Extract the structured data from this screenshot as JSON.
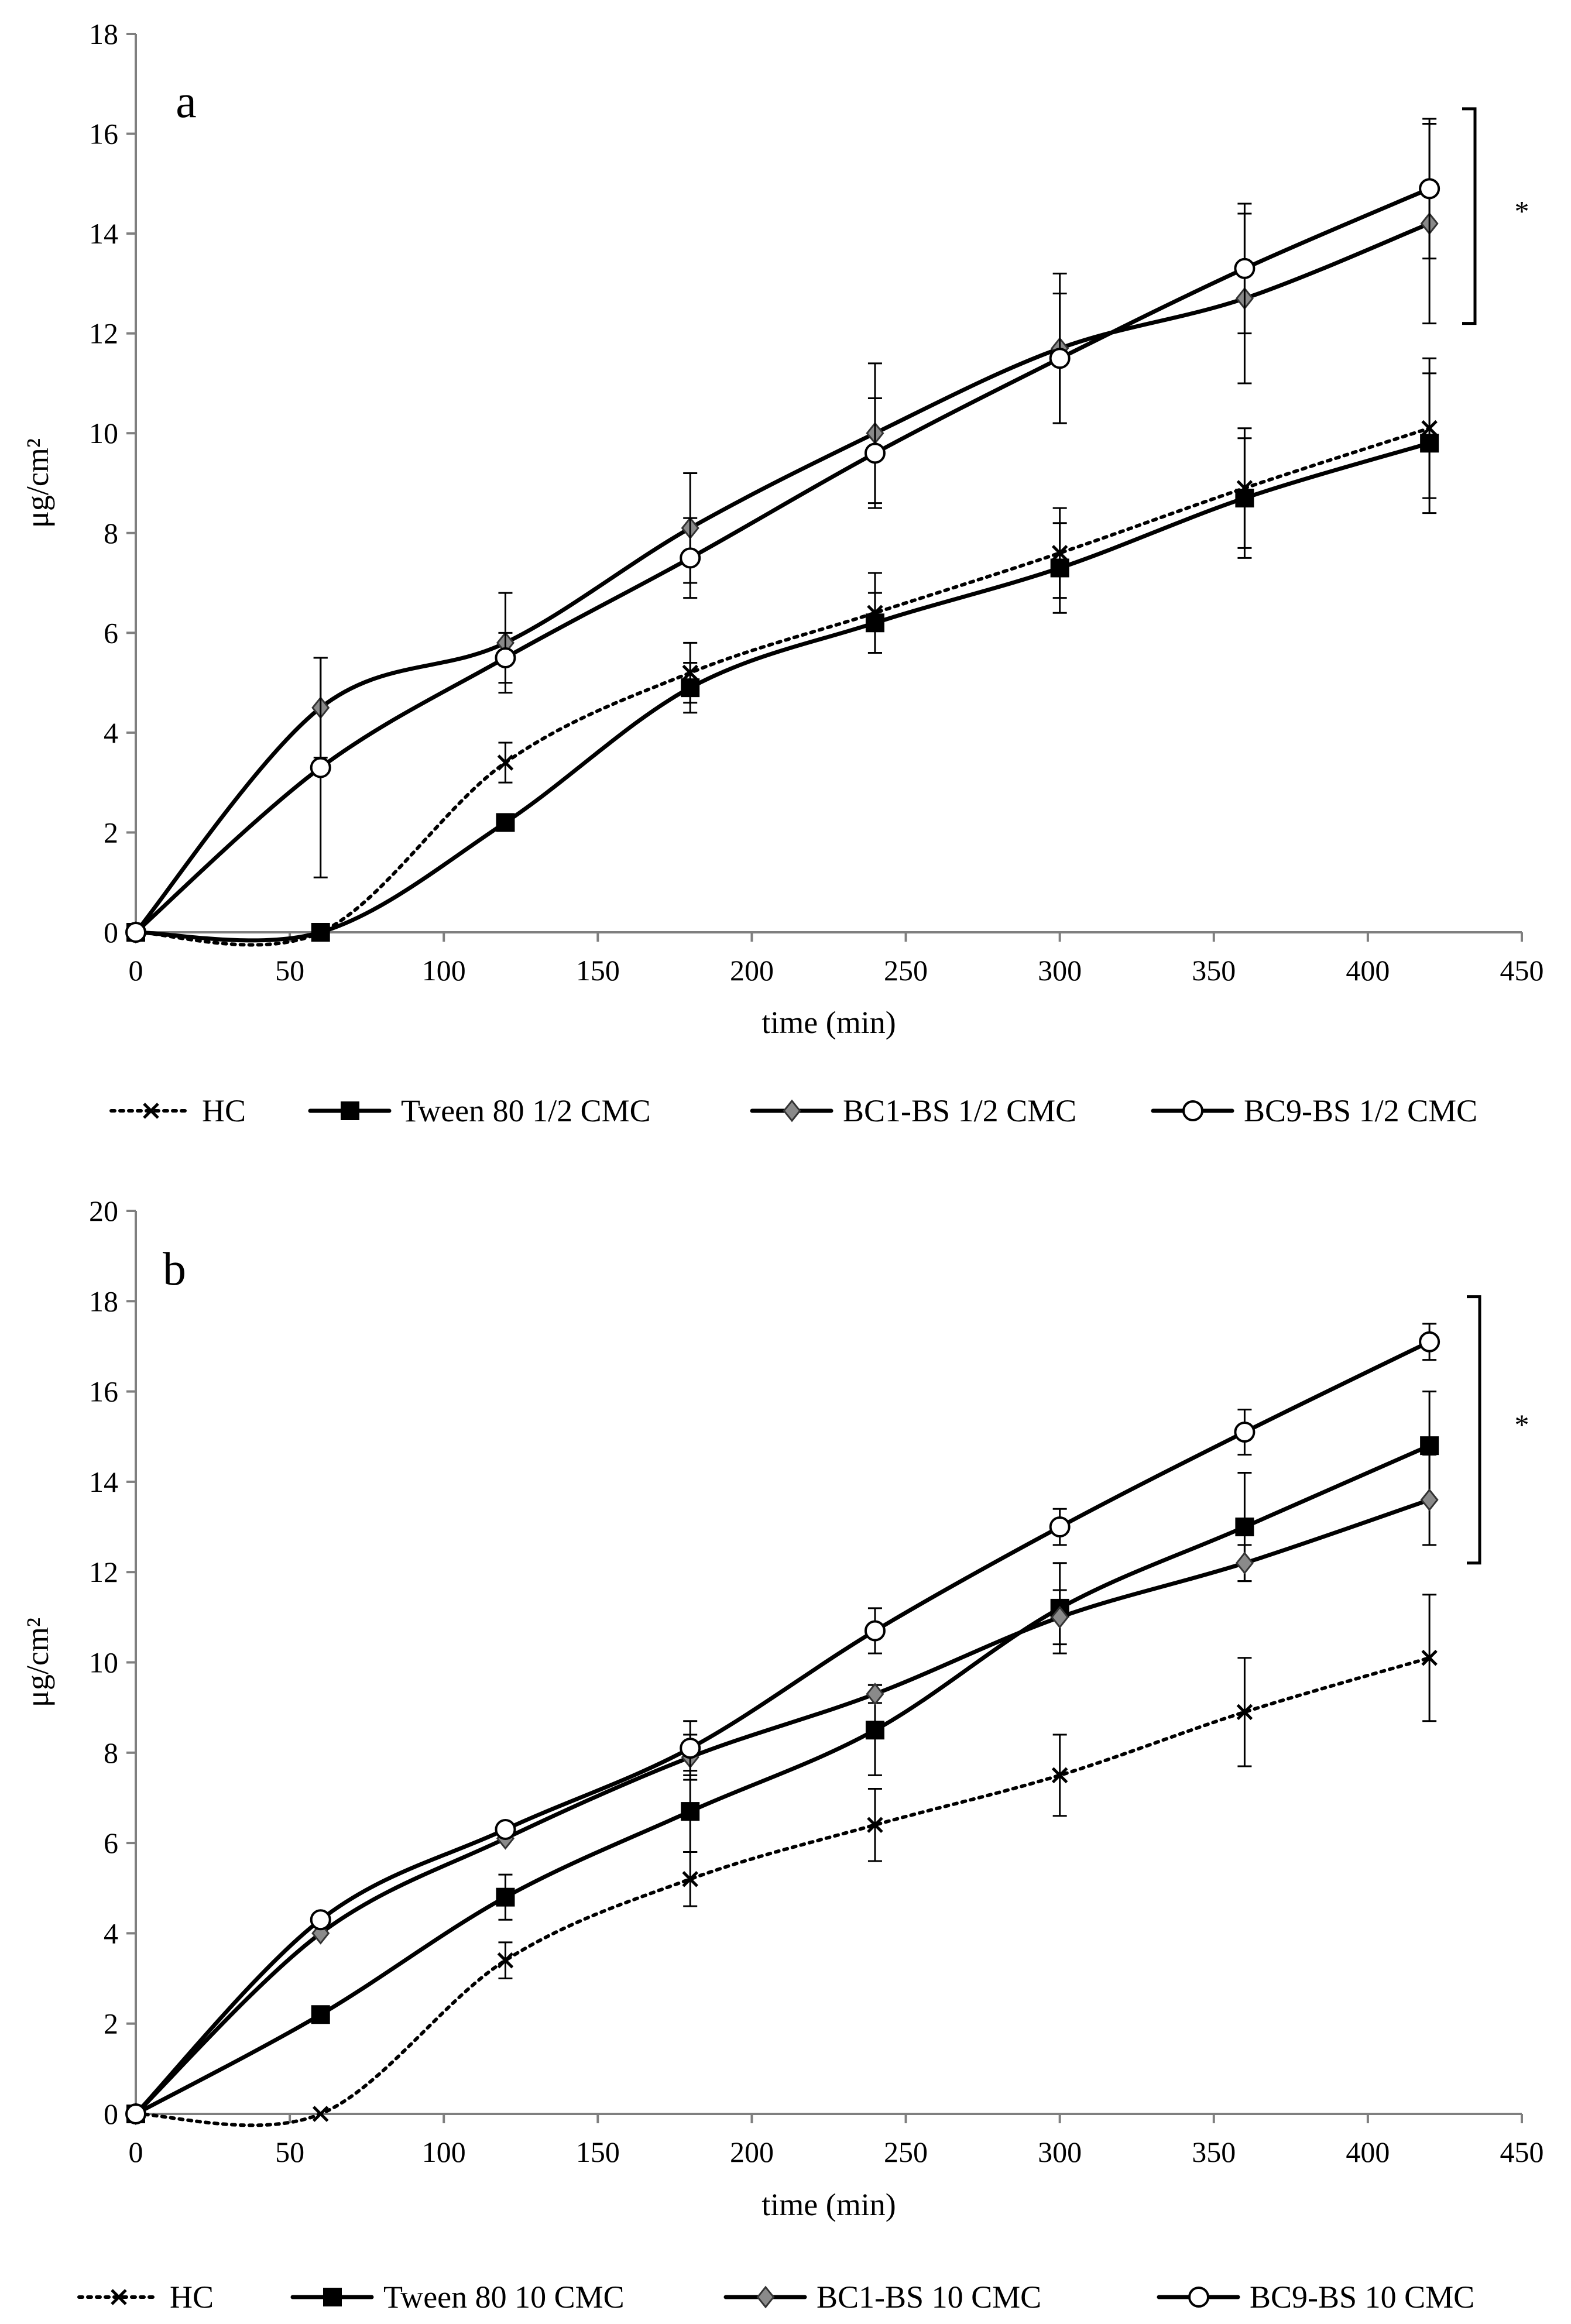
{
  "chart_data": [
    {
      "type": "line",
      "panel_label": "a",
      "xlabel": "time (min)",
      "ylabel": "μg/cm²",
      "xlim": [
        0,
        450
      ],
      "ylim": [
        0,
        18
      ],
      "xticks": [
        0,
        50,
        100,
        150,
        200,
        250,
        300,
        350,
        400,
        450
      ],
      "yticks": [
        0,
        2,
        4,
        6,
        8,
        10,
        12,
        14,
        16,
        18
      ],
      "x": [
        0,
        60,
        120,
        180,
        240,
        300,
        360,
        420
      ],
      "series": [
        {
          "name": "HC",
          "marker": "x",
          "style": "dotted",
          "values": [
            0,
            0,
            3.4,
            5.2,
            6.4,
            7.6,
            8.9,
            10.1
          ],
          "errors": [
            0,
            0,
            0.4,
            0.6,
            0.8,
            0.9,
            1.2,
            1.4
          ]
        },
        {
          "name": "Tween 80 1/2 CMC",
          "marker": "square",
          "style": "solid",
          "values": [
            0,
            0,
            2.2,
            4.9,
            6.2,
            7.3,
            8.7,
            9.8
          ],
          "errors": [
            0,
            0,
            0,
            0.5,
            0.6,
            0.9,
            1.2,
            1.4
          ]
        },
        {
          "name": "BC1-BS 1/2 CMC",
          "marker": "diamond",
          "style": "solid",
          "values": [
            0,
            4.5,
            5.8,
            8.1,
            10.0,
            11.7,
            12.7,
            14.2
          ],
          "errors": [
            0,
            1.0,
            1.0,
            1.1,
            1.4,
            1.5,
            1.7,
            2.0
          ]
        },
        {
          "name": "BC9-BS 1/2 CMC",
          "marker": "circle",
          "style": "solid",
          "values": [
            0,
            3.3,
            5.5,
            7.5,
            9.6,
            11.5,
            13.3,
            14.9
          ],
          "errors": [
            0,
            2.2,
            0.5,
            0.8,
            1.1,
            1.3,
            1.3,
            1.4
          ]
        }
      ],
      "significance": {
        "label": "*",
        "y_range": [
          12.2,
          16.5
        ]
      }
    },
    {
      "type": "line",
      "panel_label": "b",
      "xlabel": "time (min)",
      "ylabel": "μg/cm²",
      "xlim": [
        0,
        450
      ],
      "ylim": [
        0,
        20
      ],
      "xticks": [
        0,
        50,
        100,
        150,
        200,
        250,
        300,
        350,
        400,
        450
      ],
      "yticks": [
        0,
        2,
        4,
        6,
        8,
        10,
        12,
        14,
        16,
        18,
        20
      ],
      "x": [
        0,
        60,
        120,
        180,
        240,
        300,
        360,
        420
      ],
      "series": [
        {
          "name": "HC",
          "marker": "x",
          "style": "dotted",
          "values": [
            0,
            0,
            3.4,
            5.2,
            6.4,
            7.5,
            8.9,
            10.1
          ],
          "errors": [
            0,
            0,
            0.4,
            0.6,
            0.8,
            0.9,
            1.2,
            1.4
          ]
        },
        {
          "name": "Tween 80 10 CMC",
          "marker": "square",
          "style": "solid",
          "values": [
            0,
            2.2,
            4.8,
            6.7,
            8.5,
            11.2,
            13.0,
            14.8
          ],
          "errors": [
            0,
            0,
            0.5,
            0.9,
            1.0,
            1.0,
            1.2,
            1.2
          ]
        },
        {
          "name": "BC1-BS 10 CMC",
          "marker": "diamond",
          "style": "solid",
          "values": [
            0,
            4.0,
            6.1,
            7.9,
            9.3,
            11.0,
            12.2,
            13.6
          ],
          "errors": [
            0,
            0,
            0,
            0.5,
            0.2,
            0.6,
            0.4,
            1.0
          ]
        },
        {
          "name": "BC9-BS 10 CMC",
          "marker": "circle",
          "style": "solid",
          "values": [
            0,
            4.3,
            6.3,
            8.1,
            10.7,
            13.0,
            15.1,
            17.1
          ],
          "errors": [
            0,
            0,
            0,
            0.6,
            0.5,
            0.4,
            0.5,
            0.4
          ]
        }
      ],
      "significance": {
        "label": "*",
        "y_range": [
          12.2,
          18.1
        ]
      }
    }
  ]
}
